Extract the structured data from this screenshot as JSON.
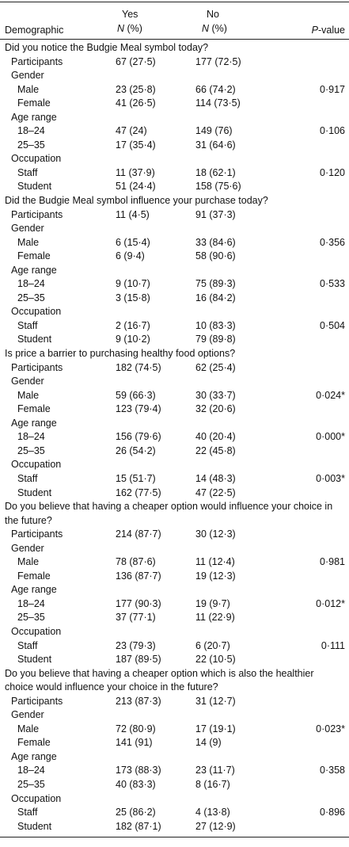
{
  "table": {
    "header": {
      "demographic": "Demographic",
      "yes": "Yes",
      "no": "No",
      "n": "N",
      "pct": "(%)",
      "p": "P",
      "pvalue": "-value"
    },
    "sections": [
      {
        "question": "Did you notice the Budgie Meal symbol today?",
        "rows": [
          [
            "Participants",
            "67 (27·5)",
            "177 (72·5)"
          ]
        ],
        "groups": [
          {
            "name": "Gender",
            "rows": [
              [
                "Male",
                "23 (25·8)",
                "66 (74·2)",
                "0·917"
              ],
              [
                "Female",
                "41 (26·5)",
                "114 (73·5)"
              ]
            ]
          },
          {
            "name": "Age range",
            "rows": [
              [
                "18–24",
                "47 (24)",
                "149 (76)",
                "0·106"
              ],
              [
                "25–35",
                "17 (35·4)",
                "31 (64·6)"
              ]
            ]
          },
          {
            "name": "Occupation",
            "rows": [
              [
                "Staff",
                "11 (37·9)",
                "18 (62·1)",
                "0·120"
              ],
              [
                "Student",
                "51 (24·4)",
                "158 (75·6)"
              ]
            ]
          }
        ]
      },
      {
        "question": "Did the Budgie Meal symbol influence your purchase today?",
        "rows": [
          [
            "Participants",
            "11 (4·5)",
            "91 (37·3)"
          ]
        ],
        "groups": [
          {
            "name": "Gender",
            "rows": [
              [
                "Male",
                "6 (15·4)",
                "33 (84·6)",
                "0·356"
              ],
              [
                "Female",
                "6 (9·4)",
                "58 (90·6)"
              ]
            ]
          },
          {
            "name": "Age range",
            "rows": [
              [
                "18–24",
                "9 (10·7)",
                "75 (89·3)",
                "0·533"
              ],
              [
                "25–35",
                "3 (15·8)",
                "16 (84·2)"
              ]
            ]
          },
          {
            "name": "Occupation",
            "rows": [
              [
                "Staff",
                "2 (16·7)",
                "10 (83·3)",
                "0·504"
              ],
              [
                "Student",
                "9 (10·2)",
                "79 (89·8)"
              ]
            ]
          }
        ]
      },
      {
        "question": "Is price a barrier to purchasing healthy food options?",
        "rows": [
          [
            "Participants",
            "182 (74·5)",
            "62 (25·4)"
          ]
        ],
        "groups": [
          {
            "name": "Gender",
            "rows": [
              [
                "Male",
                "59 (66·3)",
                "30 (33·7)",
                "0·024*"
              ],
              [
                "Female",
                "123 (79·4)",
                "32 (20·6)"
              ]
            ]
          },
          {
            "name": "Age range",
            "rows": [
              [
                "18–24",
                "156 (79·6)",
                "40 (20·4)",
                "0·000*"
              ],
              [
                "25–35",
                "26 (54·2)",
                "22 (45·8)"
              ]
            ]
          },
          {
            "name": "Occupation",
            "rows": [
              [
                "Staff",
                "15 (51·7)",
                "14 (48·3)",
                "0·003*"
              ],
              [
                "Student",
                "162 (77·5)",
                "47 (22·5)"
              ]
            ]
          }
        ]
      },
      {
        "question": "Do you believe that having a cheaper option would influence your choice in the future?",
        "rows": [
          [
            "Participants",
            "214 (87·7)",
            "30 (12·3)"
          ]
        ],
        "groups": [
          {
            "name": "Gender",
            "rows": [
              [
                "Male",
                "78 (87·6)",
                "11 (12·4)",
                "0·981"
              ],
              [
                "Female",
                "136 (87·7)",
                "19 (12·3)"
              ]
            ]
          },
          {
            "name": "Age range",
            "rows": [
              [
                "18–24",
                "177 (90·3)",
                "19 (9·7)",
                "0·012*"
              ],
              [
                "25–35",
                "37 (77·1)",
                "11 (22·9)"
              ]
            ]
          },
          {
            "name": "Occupation",
            "rows": [
              [
                "Staff",
                "23 (79·3)",
                "6 (20·7)",
                "0·111"
              ],
              [
                "Student",
                "187 (89·5)",
                "22 (10·5)"
              ]
            ]
          }
        ]
      },
      {
        "question": "Do you believe that having a cheaper option which is also the healthier choice would influence your choice in the future?",
        "rows": [
          [
            "Participants",
            "213 (87·3)",
            "31 (12·7)"
          ]
        ],
        "groups": [
          {
            "name": "Gender",
            "rows": [
              [
                "Male",
                "72 (80·9)",
                "17 (19·1)",
                "0·023*"
              ],
              [
                "Female",
                "141 (91)",
                "14 (9)"
              ]
            ]
          },
          {
            "name": "Age range",
            "rows": [
              [
                "18–24",
                "173 (88·3)",
                "23 (11·7)",
                "0·358"
              ],
              [
                "25–35",
                "40 (83·3)",
                "8 (16·7)"
              ]
            ]
          },
          {
            "name": "Occupation",
            "rows": [
              [
                "Staff",
                "25 (86·2)",
                "4 (13·8)",
                "0·896"
              ],
              [
                "Student",
                "182 (87·1)",
                "27 (12·9)"
              ]
            ]
          }
        ]
      }
    ]
  }
}
